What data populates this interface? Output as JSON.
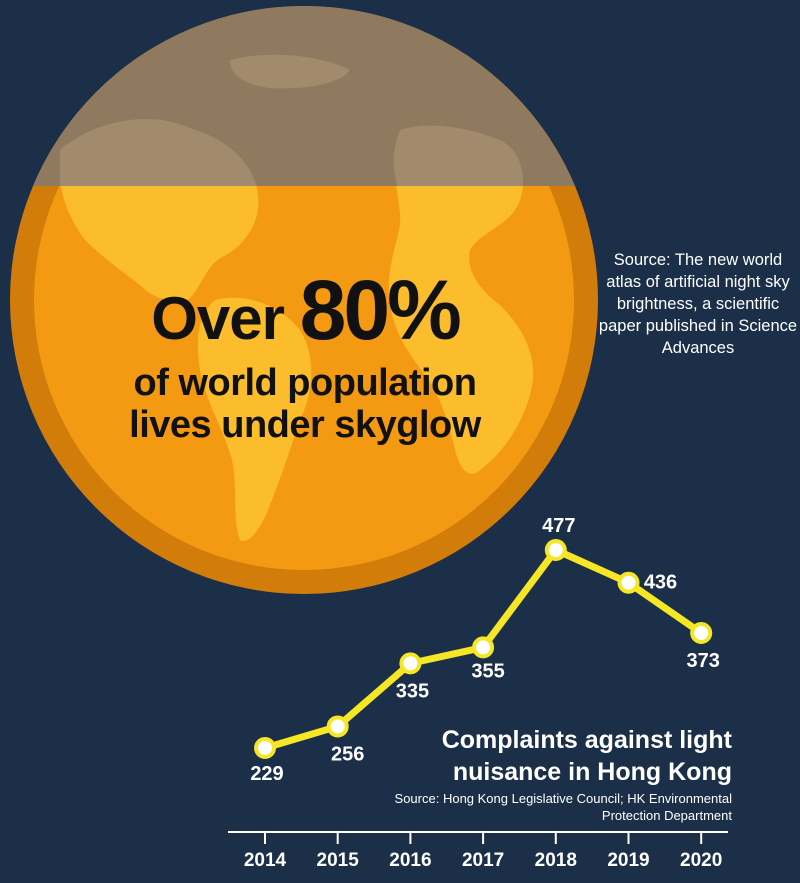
{
  "headline": {
    "over": "Over",
    "percent": "80%",
    "line2": "of world population",
    "line3": "lives under skyglow"
  },
  "source_top": "Source: The new world atlas of artificial night sky brightness, a scientific paper published in Science Advances",
  "chart_data": {
    "type": "line",
    "title": "Complaints against light nuisance in Hong Kong",
    "source": "Source: Hong Kong Legislative Council; HK Environmental Protection Department",
    "x": [
      "2014",
      "2015",
      "2016",
      "2017",
      "2018",
      "2019",
      "2020"
    ],
    "values": [
      229,
      256,
      335,
      355,
      477,
      436,
      373
    ],
    "data_labels": [
      "229",
      "256",
      "335",
      "355",
      "477",
      "436",
      "373"
    ],
    "ylim": [
      180,
      500
    ],
    "grid": false,
    "colors": {
      "line": "#f5e726",
      "marker_fill": "#ffffff",
      "axis": "#ffffff"
    }
  },
  "colors": {
    "background": "#1b2f49",
    "globe_orange": "#f49a12",
    "globe_land": "#fbbd2c",
    "globe_top": "#8f7a5f"
  }
}
